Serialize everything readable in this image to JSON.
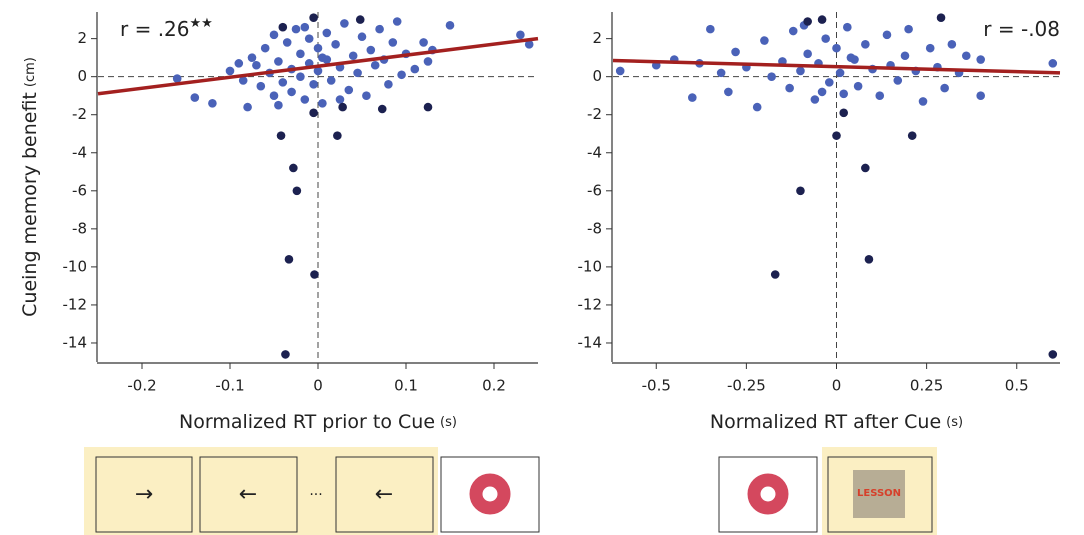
{
  "chart_data": [
    {
      "type": "scatter",
      "ylabel": "Cueing memory benefit",
      "ylabel_unit": "(cm)",
      "xlabel": "Normalized RT prior to Cue",
      "xlabel_unit": "(s)",
      "annotation": "r = .26",
      "annotation_mark": "★★",
      "xlim": [
        -0.25,
        0.25
      ],
      "ylim": [
        -15,
        3.4
      ],
      "xticks": [
        -0.2,
        -0.1,
        0,
        0.1,
        0.2
      ],
      "yticks": [
        2,
        0,
        -2,
        -4,
        -6,
        -8,
        -10,
        -12,
        -14
      ],
      "reference_lines": true,
      "trend_line": {
        "color": "#a3201f",
        "x": [
          -0.25,
          0.25
        ],
        "values": [
          -0.9,
          2.0
        ]
      },
      "series": [
        {
          "color": "#4a62b8",
          "x": [
            -0.16,
            -0.14,
            -0.12,
            -0.1,
            -0.09,
            -0.08,
            -0.075,
            -0.07,
            -0.065,
            -0.06,
            -0.055,
            -0.05,
            -0.05,
            -0.045,
            -0.04,
            -0.035,
            -0.03,
            -0.03,
            -0.025,
            -0.02,
            -0.02,
            -0.015,
            -0.01,
            -0.01,
            -0.005,
            0,
            0,
            0.005,
            0.01,
            0.01,
            0.015,
            0.02,
            0.025,
            0.03,
            0.035,
            0.04,
            0.045,
            0.05,
            0.055,
            0.06,
            0.065,
            0.07,
            0.075,
            0.08,
            0.085,
            0.09,
            0.095,
            0.1,
            0.11,
            0.12,
            0.125,
            0.13,
            0.15,
            0.23,
            0.24,
            -0.085,
            -0.045,
            0.005,
            0.025,
            -0.015
          ],
          "values": [
            -0.1,
            -1.1,
            -1.4,
            0.3,
            0.7,
            -1.6,
            1.0,
            0.6,
            -0.5,
            1.5,
            0.2,
            -1.0,
            2.2,
            0.8,
            -0.3,
            1.8,
            0.4,
            -0.8,
            2.5,
            1.2,
            0.0,
            -1.2,
            0.7,
            2.0,
            -0.4,
            1.5,
            0.3,
            -1.4,
            2.3,
            0.9,
            -0.2,
            1.7,
            0.5,
            2.8,
            -0.7,
            1.1,
            0.2,
            2.1,
            -1.0,
            1.4,
            0.6,
            2.5,
            0.9,
            -0.4,
            1.8,
            2.9,
            0.1,
            1.2,
            0.4,
            1.8,
            0.8,
            1.4,
            2.7,
            2.2,
            1.7,
            -0.2,
            -1.5,
            1.0,
            -1.2,
            2.6
          ]
        },
        {
          "color": "#1c2150",
          "x": [
            -0.042,
            -0.028,
            -0.024,
            -0.033,
            -0.004,
            -0.037,
            0.022,
            -0.005,
            0.073,
            0.125,
            0.028,
            0.048,
            -0.005,
            -0.04
          ],
          "values": [
            -3.1,
            -4.8,
            -6.0,
            -9.6,
            -10.4,
            -14.6,
            -3.1,
            -1.9,
            -1.7,
            -1.6,
            -1.6,
            3.0,
            3.1,
            2.6
          ]
        }
      ]
    },
    {
      "type": "scatter",
      "xlabel": "Normalized RT after Cue",
      "xlabel_unit": "(s)",
      "annotation": "r = -.08",
      "xlim": [
        -0.62,
        0.62
      ],
      "ylim": [
        -15,
        3.4
      ],
      "xticks": [
        -0.5,
        -0.25,
        0,
        0.25,
        0.5
      ],
      "yticks": [
        2,
        0,
        -2,
        -4,
        -6,
        -8,
        -10,
        -12,
        -14
      ],
      "reference_lines": true,
      "trend_line": {
        "color": "#a3201f",
        "x": [
          -0.62,
          0.62
        ],
        "values": [
          0.85,
          0.2
        ]
      },
      "series": [
        {
          "color": "#4a62b8",
          "x": [
            -0.6,
            -0.5,
            -0.45,
            -0.4,
            -0.38,
            -0.35,
            -0.32,
            -0.3,
            -0.28,
            -0.25,
            -0.22,
            -0.2,
            -0.18,
            -0.15,
            -0.13,
            -0.12,
            -0.1,
            -0.08,
            -0.06,
            -0.05,
            -0.03,
            -0.02,
            0,
            0.01,
            0.02,
            0.03,
            0.05,
            0.06,
            0.08,
            0.1,
            0.12,
            0.14,
            0.15,
            0.17,
            0.19,
            0.2,
            0.22,
            0.24,
            0.26,
            0.28,
            0.3,
            0.32,
            0.34,
            0.36,
            0.4,
            0.4,
            0.6,
            -0.04,
            0.04,
            -0.09
          ],
          "values": [
            0.3,
            0.6,
            0.9,
            -1.1,
            0.7,
            2.5,
            0.2,
            -0.8,
            1.3,
            0.5,
            -1.6,
            1.9,
            0.0,
            0.8,
            -0.6,
            2.4,
            0.3,
            1.2,
            -1.2,
            0.7,
            2.0,
            -0.3,
            1.5,
            0.2,
            -0.9,
            2.6,
            0.9,
            -0.5,
            1.7,
            0.4,
            -1.0,
            2.2,
            0.6,
            -0.2,
            1.1,
            2.5,
            0.3,
            -1.3,
            1.5,
            0.5,
            -0.6,
            1.7,
            0.2,
            1.1,
            -1.0,
            0.9,
            0.7,
            -0.8,
            1.0,
            2.7
          ]
        },
        {
          "color": "#1c2150",
          "x": [
            0,
            0.08,
            -0.1,
            0.09,
            -0.17,
            0.6,
            0.21,
            -0.08,
            0.29,
            -0.04,
            0.02
          ],
          "values": [
            -3.1,
            -4.8,
            -6.0,
            -9.6,
            -10.4,
            -14.6,
            -3.1,
            2.9,
            3.1,
            3.0,
            -1.9
          ]
        }
      ]
    }
  ],
  "panels": {
    "arrows": [
      "→",
      "←",
      "···",
      "←"
    ],
    "lesson": "LESSON"
  }
}
